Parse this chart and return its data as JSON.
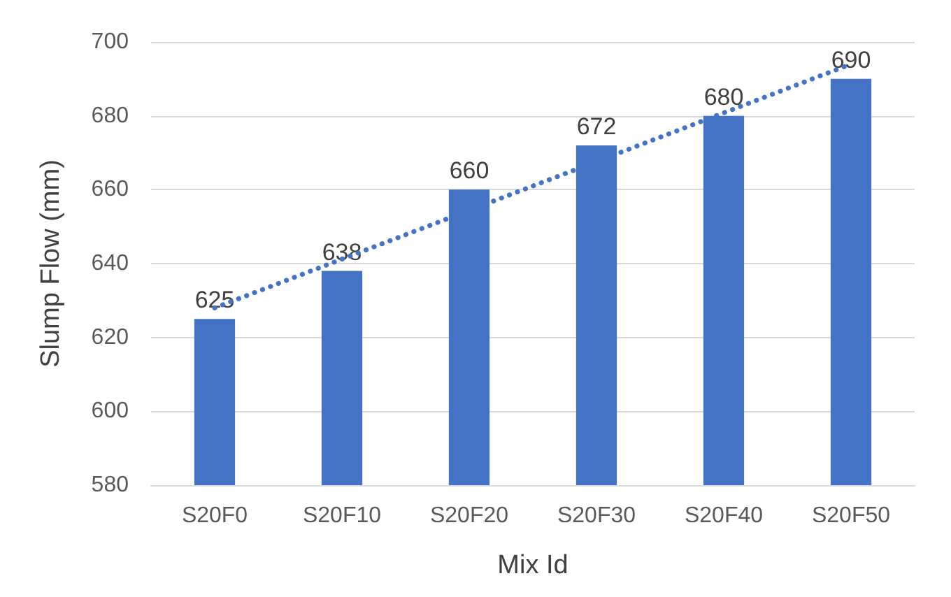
{
  "chart_data": {
    "type": "bar",
    "xlabel": "Mix Id",
    "ylabel": "Slump Flow (mm)",
    "categories": [
      "S20F0",
      "S20F10",
      "S20F20",
      "S20F30",
      "S20F40",
      "S20F50"
    ],
    "series": [
      {
        "color": "#4472c4",
        "values": [
          625,
          638,
          660,
          672,
          680,
          690
        ],
        "value_labels": [
          "625",
          "638",
          "660",
          "672",
          "680",
          "690"
        ]
      },
      {
        "type": "line",
        "color": "#4472c4",
        "x": [
          "S20F0",
          "S20F50"
        ],
        "values": [
          628,
          694
        ],
        "line_style": "dotted",
        "marker": "none"
      }
    ],
    "ylim": [
      580,
      700
    ],
    "yticks": [
      580,
      600,
      620,
      640,
      660,
      680,
      700
    ],
    "grid": "y"
  }
}
